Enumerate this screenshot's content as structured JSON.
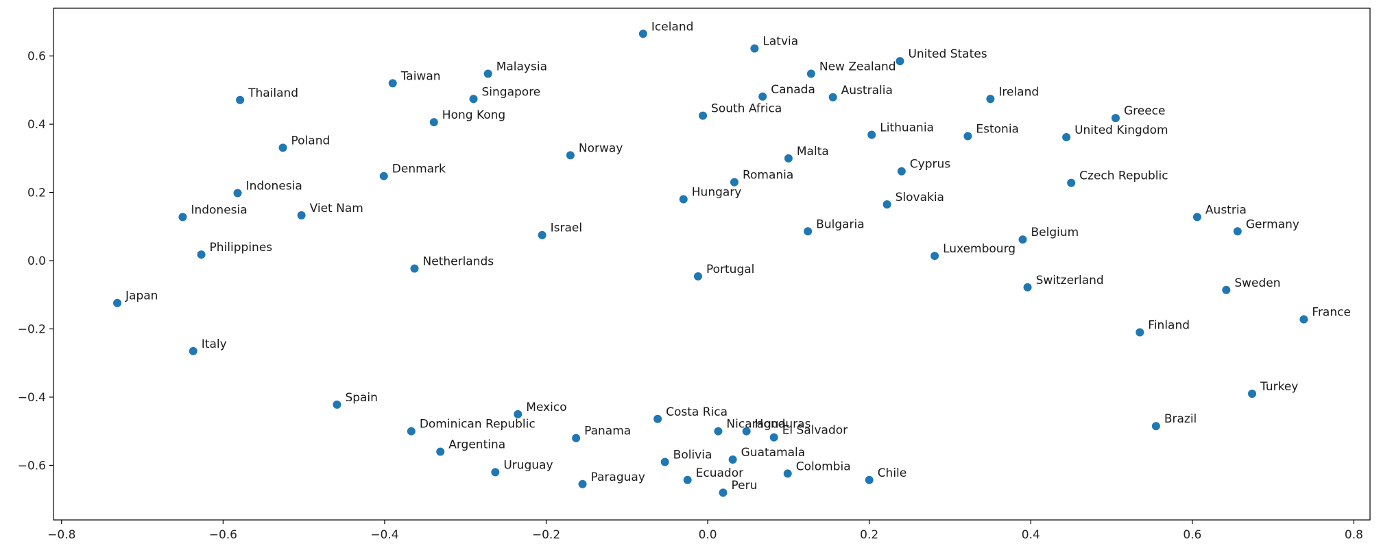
{
  "colors": {
    "point": "#1f77b4",
    "axis": "#000000",
    "text": "#262626",
    "background": "#ffffff"
  },
  "chart_data": {
    "type": "scatter",
    "title": "",
    "xlabel": "",
    "ylabel": "",
    "xlim": [
      -0.81,
      0.82
    ],
    "ylim": [
      -0.76,
      0.74
    ],
    "xticks": [
      -0.8,
      -0.6,
      -0.4,
      -0.2,
      0.0,
      0.2,
      0.4,
      0.6,
      0.8
    ],
    "xtick_labels": [
      "−0.8",
      "−0.6",
      "−0.4",
      "−0.2",
      "0.0",
      "0.2",
      "0.4",
      "0.6",
      "0.8"
    ],
    "yticks": [
      0.6,
      0.4,
      0.2,
      0.0,
      -0.2,
      -0.4,
      -0.6
    ],
    "ytick_labels": [
      "0.6",
      "0.4",
      "0.2",
      "0.0",
      "−0.2",
      "−0.4",
      "−0.6"
    ],
    "grid": false,
    "points": [
      {
        "label": "Iceland",
        "x": -0.08,
        "y": 0.665
      },
      {
        "label": "Latvia",
        "x": 0.058,
        "y": 0.622
      },
      {
        "label": "New Zealand",
        "x": 0.128,
        "y": 0.548
      },
      {
        "label": "United States",
        "x": 0.238,
        "y": 0.585
      },
      {
        "label": "Thailand",
        "x": -0.579,
        "y": 0.471
      },
      {
        "label": "Taiwan",
        "x": -0.39,
        "y": 0.52
      },
      {
        "label": "Malaysia",
        "x": -0.272,
        "y": 0.548
      },
      {
        "label": "Singapore",
        "x": -0.29,
        "y": 0.474
      },
      {
        "label": "Hong Kong",
        "x": -0.339,
        "y": 0.406
      },
      {
        "label": "Canada",
        "x": 0.068,
        "y": 0.481
      },
      {
        "label": "Australia",
        "x": 0.155,
        "y": 0.479
      },
      {
        "label": "Ireland",
        "x": 0.35,
        "y": 0.474
      },
      {
        "label": "South Africa",
        "x": -0.006,
        "y": 0.425
      },
      {
        "label": "Greece",
        "x": 0.505,
        "y": 0.418
      },
      {
        "label": "Lithuania",
        "x": 0.203,
        "y": 0.369
      },
      {
        "label": "Estonia",
        "x": 0.322,
        "y": 0.365
      },
      {
        "label": "United Kingdom",
        "x": 0.444,
        "y": 0.362
      },
      {
        "label": "Poland",
        "x": -0.526,
        "y": 0.331
      },
      {
        "label": "Norway",
        "x": -0.17,
        "y": 0.309
      },
      {
        "label": "Malta",
        "x": 0.1,
        "y": 0.3
      },
      {
        "label": "Denmark",
        "x": -0.401,
        "y": 0.248
      },
      {
        "label": "Cyprus",
        "x": 0.24,
        "y": 0.262
      },
      {
        "label": "Indonesia",
        "x": -0.582,
        "y": 0.198
      },
      {
        "label": "Romania",
        "x": 0.033,
        "y": 0.23
      },
      {
        "label": "Czech Republic",
        "x": 0.45,
        "y": 0.228
      },
      {
        "label": "Hungary",
        "x": -0.03,
        "y": 0.18
      },
      {
        "label": "Slovakia",
        "x": 0.222,
        "y": 0.165
      },
      {
        "label": "Indonesia",
        "x": -0.65,
        "y": 0.128
      },
      {
        "label": "Viet Nam",
        "x": -0.503,
        "y": 0.133
      },
      {
        "label": "Austria",
        "x": 0.606,
        "y": 0.128
      },
      {
        "label": "Israel",
        "x": -0.205,
        "y": 0.075
      },
      {
        "label": "Bulgaria",
        "x": 0.124,
        "y": 0.086
      },
      {
        "label": "Germany",
        "x": 0.656,
        "y": 0.086
      },
      {
        "label": "Belgium",
        "x": 0.39,
        "y": 0.062
      },
      {
        "label": "Philippines",
        "x": -0.627,
        "y": 0.018
      },
      {
        "label": "Luxembourg",
        "x": 0.281,
        "y": 0.014
      },
      {
        "label": "Netherlands",
        "x": -0.363,
        "y": -0.023
      },
      {
        "label": "Portugal",
        "x": -0.012,
        "y": -0.046
      },
      {
        "label": "Switzerland",
        "x": 0.396,
        "y": -0.078
      },
      {
        "label": "Sweden",
        "x": 0.642,
        "y": -0.086
      },
      {
        "label": "Japan",
        "x": -0.731,
        "y": -0.124
      },
      {
        "label": "France",
        "x": 0.738,
        "y": -0.172
      },
      {
        "label": "Finland",
        "x": 0.535,
        "y": -0.21
      },
      {
        "label": "Italy",
        "x": -0.637,
        "y": -0.265
      },
      {
        "label": "Turkey",
        "x": 0.674,
        "y": -0.39
      },
      {
        "label": "Spain",
        "x": -0.459,
        "y": -0.422
      },
      {
        "label": "Mexico",
        "x": -0.235,
        "y": -0.45
      },
      {
        "label": "Costa Rica",
        "x": -0.062,
        "y": -0.464
      },
      {
        "label": "Brazil",
        "x": 0.555,
        "y": -0.485
      },
      {
        "label": "Dominican Republic",
        "x": -0.367,
        "y": -0.5
      },
      {
        "label": "Nicaragua",
        "x": 0.013,
        "y": -0.5
      },
      {
        "label": "Honduras",
        "x": 0.048,
        "y": -0.5
      },
      {
        "label": "El Salvador",
        "x": 0.082,
        "y": -0.518
      },
      {
        "label": "Panama",
        "x": -0.163,
        "y": -0.52
      },
      {
        "label": "Argentina",
        "x": -0.331,
        "y": -0.56
      },
      {
        "label": "Guatamala",
        "x": 0.031,
        "y": -0.583
      },
      {
        "label": "Bolivia",
        "x": -0.053,
        "y": -0.59
      },
      {
        "label": "Uruguay",
        "x": -0.263,
        "y": -0.62
      },
      {
        "label": "Colombia",
        "x": 0.099,
        "y": -0.624
      },
      {
        "label": "Ecuador",
        "x": -0.025,
        "y": -0.643
      },
      {
        "label": "Chile",
        "x": 0.2,
        "y": -0.643
      },
      {
        "label": "Paraguay",
        "x": -0.155,
        "y": -0.655
      },
      {
        "label": "Peru",
        "x": 0.019,
        "y": -0.68
      }
    ]
  }
}
